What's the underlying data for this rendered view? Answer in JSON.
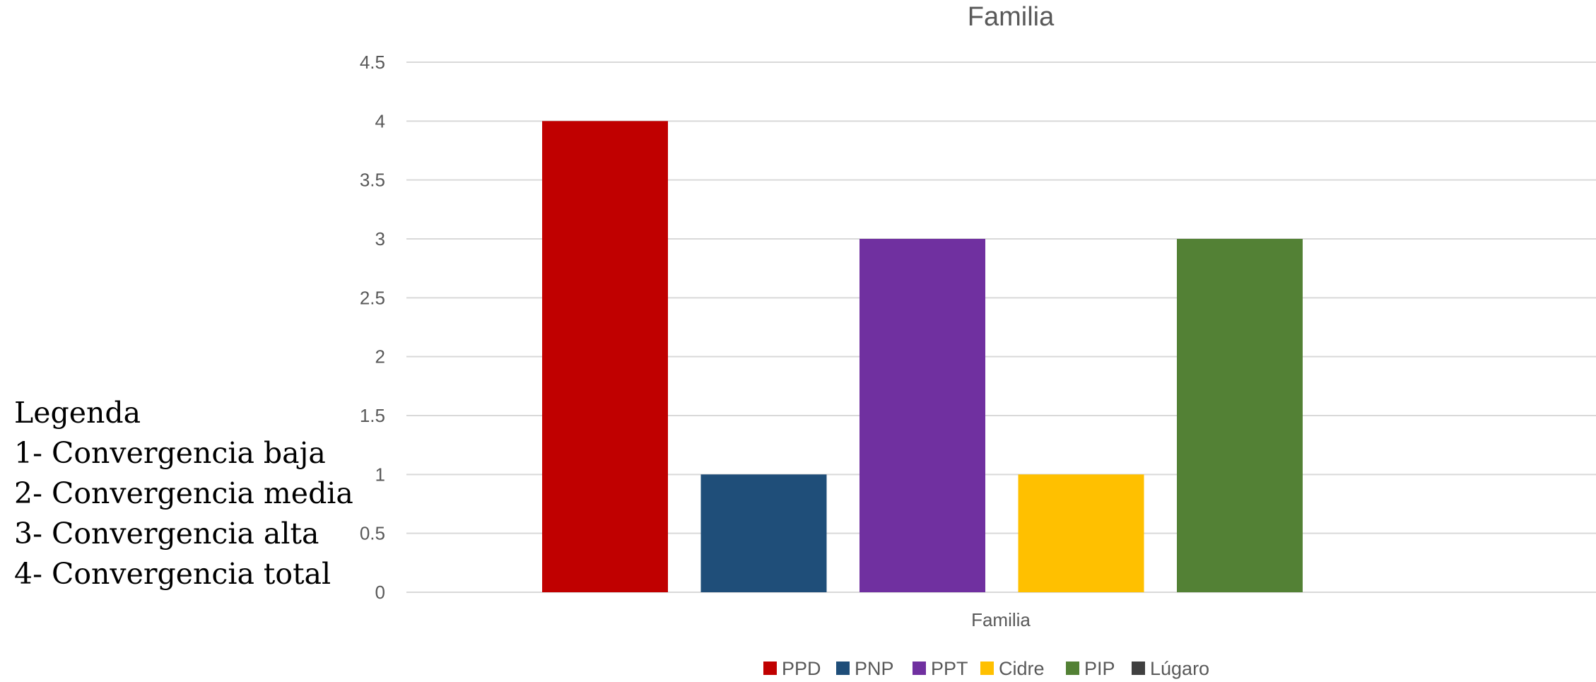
{
  "side_legend": {
    "title": "Legenda",
    "items": [
      "1- Convergencia baja",
      "2- Convergencia media",
      "3- Convergencia alta",
      "4- Convergencia total"
    ]
  },
  "chart_data": {
    "type": "bar",
    "title": "Familia",
    "categories": [
      "Familia"
    ],
    "series": [
      {
        "name": "PPD",
        "values": [
          4
        ],
        "color": "#C00000"
      },
      {
        "name": "PNP",
        "values": [
          1
        ],
        "color": "#1F4E79"
      },
      {
        "name": "PPT",
        "values": [
          3
        ],
        "color": "#7030A0"
      },
      {
        "name": "Cidre",
        "values": [
          1
        ],
        "color": "#FFC000"
      },
      {
        "name": "PIP",
        "values": [
          3
        ],
        "color": "#538135"
      },
      {
        "name": "Lúgaro",
        "values": [
          0
        ],
        "color": "#404040"
      }
    ],
    "ylim": [
      0,
      4.5
    ],
    "yticks": [
      "0",
      "0.5",
      "1",
      "1.5",
      "2",
      "2.5",
      "3",
      "3.5",
      "4",
      "4.5"
    ],
    "grid": true,
    "legend_position": "bottom"
  }
}
